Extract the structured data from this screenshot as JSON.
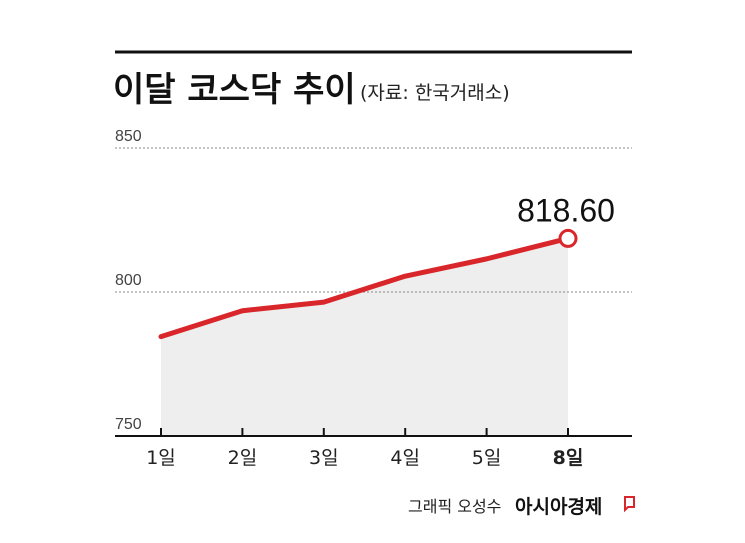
{
  "title": "이달 코스닥 추이",
  "source": "(자료: 한국거래소)",
  "credit": "그래픽 오성수",
  "brand": "아시아경제",
  "colors": {
    "line": "#d9262b",
    "area": "#eeeeee",
    "accent": "#d9262b"
  },
  "chart_data": {
    "type": "area",
    "title": "이달 코스닥 추이",
    "xlabel": "",
    "ylabel": "",
    "categories": [
      "1일",
      "2일",
      "3일",
      "4일",
      "5일",
      "8일"
    ],
    "values": [
      784.5,
      793.5,
      796.5,
      805.5,
      811.5,
      818.6
    ],
    "highlight": {
      "category": "8일",
      "label": "818.60"
    },
    "ylim": [
      750,
      850
    ],
    "yticks": [
      "850",
      "800",
      "750"
    ],
    "grid": true,
    "legend": "none"
  }
}
